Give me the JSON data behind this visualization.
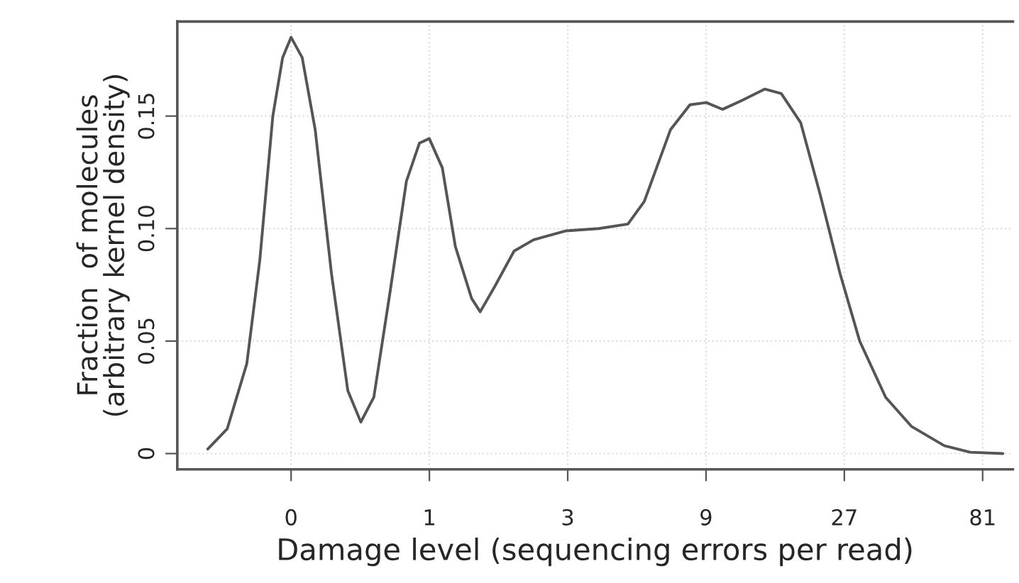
{
  "chart_data": {
    "type": "line",
    "xlabel": "Damage level (sequencing errors per read)",
    "ylabel": "Fraction  of molecules\n(arbitrary kernel density)",
    "x": [
      0.172,
      0.2007,
      0.2345,
      0.26,
      0.2883,
      0.3117,
      0.3333,
      0.364,
      0.4036,
      0.4594,
      0.523,
      0.58,
      0.643,
      0.732,
      0.833,
      0.924,
      0.999,
      1.108,
      1.229,
      1.398,
      1.497,
      1.676,
      1.959,
      2.287,
      2.964,
      3.84,
      4.84,
      5.51,
      6.79,
      7.92,
      9.02,
      10.27,
      11.99,
      14.37,
      16.36,
      19.1,
      22.3,
      26.1,
      30.5,
      37.5,
      46.1,
      59.7,
      73.4,
      95.1
    ],
    "series": [
      {
        "color": "#555555",
        "values": [
          0.002,
          0.011,
          0.04,
          0.086,
          0.15,
          0.176,
          0.185,
          0.176,
          0.144,
          0.08,
          0.028,
          0.014,
          0.025,
          0.072,
          0.121,
          0.138,
          0.14,
          0.127,
          0.092,
          0.069,
          0.063,
          0.074,
          0.09,
          0.095,
          0.099,
          0.1,
          0.102,
          0.112,
          0.144,
          0.155,
          0.156,
          0.153,
          0.157,
          0.162,
          0.16,
          0.147,
          0.115,
          0.08,
          0.05,
          0.025,
          0.012,
          0.0035,
          0.0006,
          0.0
        ]
      }
    ],
    "xlim": [
      0.135,
      103
    ],
    "ylim": [
      -0.007,
      0.192
    ],
    "xticks": [
      {
        "value": 0.3333,
        "label": "0"
      },
      1,
      3,
      9,
      27,
      81
    ],
    "log": "x",
    "yticks": [
      {
        "value": 0,
        "label": "0"
      },
      {
        "value": 0.05,
        "label": "0.05"
      },
      {
        "value": 0.1,
        "label": "0.10"
      },
      {
        "value": 0.15,
        "label": "0.15"
      }
    ],
    "grid": true,
    "line_style": "solid",
    "marker": "none"
  }
}
